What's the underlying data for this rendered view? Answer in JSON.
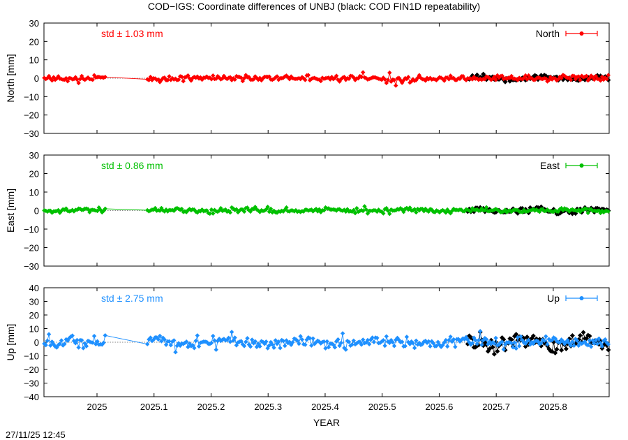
{
  "title": "COD−IGS: Coordinate differences of UNBJ (black: COD FIN1D repeatability)",
  "timestamp": "27/11/25 12:45",
  "xlabel": "YEAR",
  "chart_data": {
    "type": "line",
    "x_ticks": [
      "2025",
      "2025.1",
      "2025.2",
      "2025.3",
      "2025.4",
      "2025.5",
      "2025.6",
      "2025.7",
      "2025.8"
    ],
    "x_tick_values": [
      2025.0,
      2025.1,
      2025.2,
      2025.3,
      2025.4,
      2025.5,
      2025.6,
      2025.7,
      2025.8
    ],
    "xlim": [
      2024.907,
      2025.898
    ],
    "gap": [
      2025.015,
      2025.086
    ],
    "repeatability_start": 2025.65,
    "panels": [
      {
        "series_name": "North",
        "ylabel": "North [mm]",
        "ylim": [
          -30,
          30
        ],
        "yticks": [
          30,
          20,
          10,
          0,
          -10,
          -20,
          -30
        ],
        "std_label": "std ± 1.03 mm",
        "color": "#ff0000",
        "std_mm": 1.03,
        "rep_std_mm": 1.1,
        "spikes": [
          [
            2025.466,
            3.2
          ],
          [
            2025.514,
            3.0
          ],
          [
            2025.523,
            -4.0
          ],
          [
            2025.508,
            -2.6
          ],
          [
            2025.534,
            -2.5
          ]
        ]
      },
      {
        "series_name": "East",
        "ylabel": "East [mm]",
        "ylim": [
          -30,
          30
        ],
        "yticks": [
          30,
          20,
          10,
          0,
          -10,
          -20,
          -30
        ],
        "std_label": "std ± 0.86 mm",
        "color": "#00c000",
        "std_mm": 0.86,
        "rep_std_mm": 1.0,
        "spikes": [
          [
            2025.3,
            2.0
          ],
          [
            2025.47,
            2.3
          ]
        ]
      },
      {
        "series_name": "Up",
        "ylabel": "Up [mm]",
        "ylim": [
          -40,
          40
        ],
        "yticks": [
          40,
          30,
          20,
          10,
          0,
          -10,
          -20,
          -30,
          -40
        ],
        "std_label": "std ± 2.75 mm",
        "color": "#1e90ff",
        "std_mm": 2.75,
        "rep_std_mm": 4.0,
        "spikes": [
          [
            2025.013,
            5.0
          ],
          [
            2025.21,
            -5.5
          ],
          [
            2025.235,
            7.5
          ],
          [
            2025.43,
            6.5
          ]
        ]
      }
    ]
  },
  "colors": {
    "repeatability": "#000000",
    "zero_line": "#606060",
    "axis": "#000000"
  }
}
